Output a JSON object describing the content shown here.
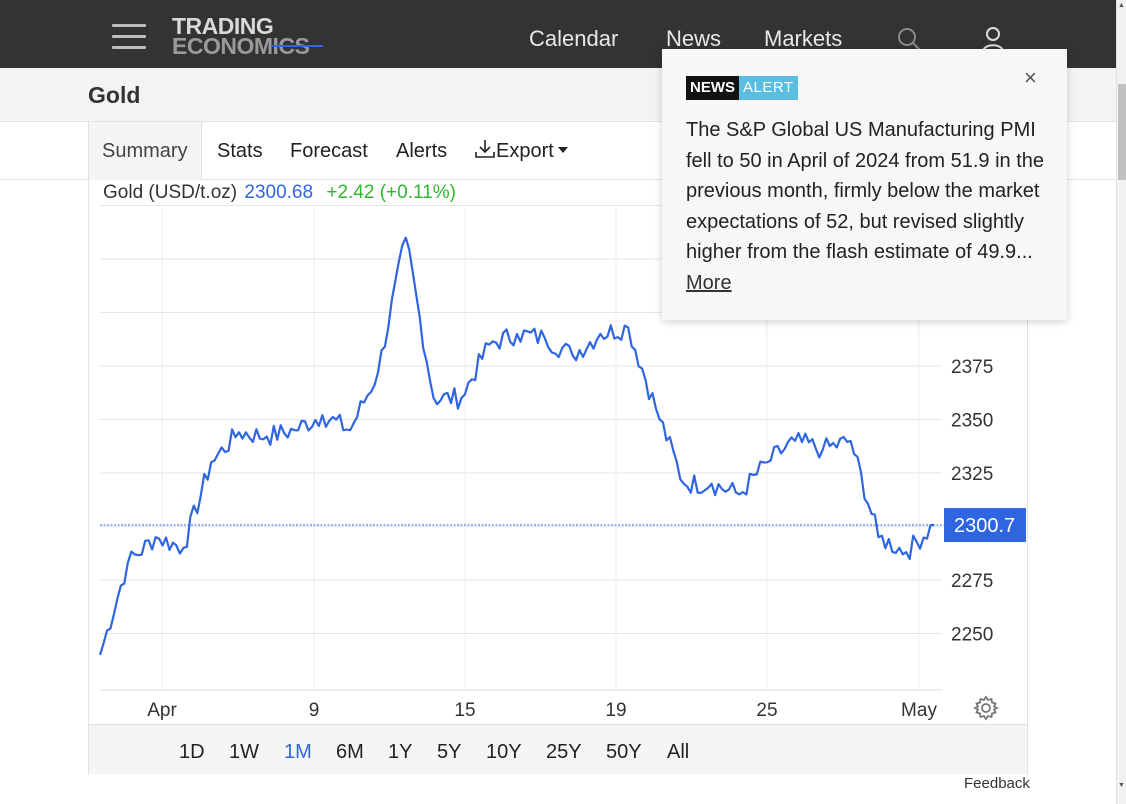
{
  "nav": {
    "logo_line1": "TRADING",
    "logo_line2": "ECONOMICS",
    "links": [
      "Calendar",
      "News",
      "Markets"
    ],
    "search_icon": "search-icon",
    "user_icon": "user-icon",
    "menu_icon": "hamburger-menu-icon"
  },
  "page": {
    "title": "Gold"
  },
  "tabs": {
    "summary": "Summary",
    "stats": "Stats",
    "forecast": "Forecast",
    "alerts": "Alerts",
    "export": "Export"
  },
  "quote": {
    "name": "Gold (USD/t.oz)",
    "price": "2300.68",
    "change": "+2.42 (+0.11%)"
  },
  "ranges": [
    "1D",
    "1W",
    "1M",
    "6M",
    "1Y",
    "5Y",
    "10Y",
    "25Y",
    "50Y",
    "All"
  ],
  "active_range": "1M",
  "feedback": "Feedback",
  "popup": {
    "badge_news": "NEWS",
    "badge_alert": "ALERT",
    "close": "×",
    "text": "The S&P Global US Manufacturing PMI fell to 50 in April of 2024 from 51.9 in the previous month, firmly below the market expectations of 52, but revised slightly higher from the flash estimate of 49.9...",
    "more": "More"
  },
  "colors": {
    "line": "#2f66e0",
    "change_positive": "#2fb72f",
    "nav_bg": "#333333",
    "badge_alert": "#5bbde0"
  },
  "chart_data": {
    "type": "line",
    "title": "Gold (USD/t.oz)",
    "x_tick_labels": [
      "Apr",
      "9",
      "15",
      "19",
      "25",
      "May"
    ],
    "y_ticks": [
      2250,
      2275,
      2300,
      2325,
      2350,
      2375
    ],
    "ylim": [
      2232,
      2455
    ],
    "last_value_label": "2300.7",
    "last_value": 2300.68,
    "grid": true,
    "series": [
      {
        "x": [
          "Apr 1",
          "Apr 2",
          "Apr 3",
          "Apr 4",
          "Apr 5",
          "Apr 6",
          "Apr 7",
          "Apr 8",
          "Apr 9",
          "Apr 10",
          "Apr 11",
          "Apr 12",
          "Apr 13",
          "Apr 14",
          "Apr 15",
          "Apr 16",
          "Apr 17",
          "Apr 18",
          "Apr 19",
          "Apr 20",
          "Apr 21",
          "Apr 22",
          "Apr 23",
          "Apr 24",
          "Apr 25",
          "Apr 26",
          "Apr 27",
          "Apr 28",
          "Apr 29",
          "Apr 30",
          "May 1"
        ],
        "y": [
          2240,
          2283,
          2295,
          2290,
          2330,
          2344,
          2342,
          2345,
          2352,
          2345,
          2372,
          2435,
          2360,
          2360,
          2385,
          2390,
          2388,
          2380,
          2390,
          2393,
          2355,
          2320,
          2320,
          2315,
          2330,
          2340,
          2336,
          2340,
          2295,
          2288,
          2300.68
        ]
      }
    ]
  }
}
